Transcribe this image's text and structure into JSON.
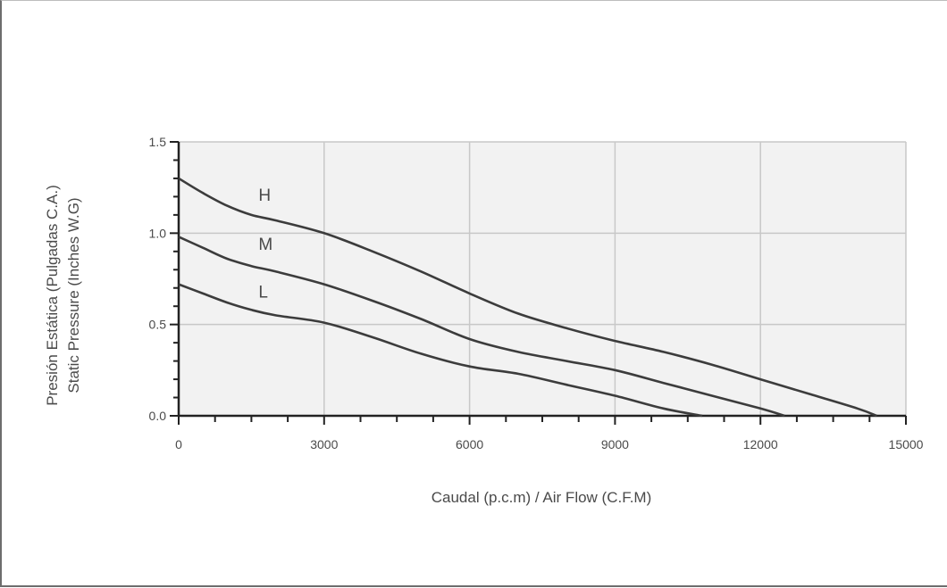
{
  "chart_data": {
    "type": "line",
    "title": "",
    "xlabel": "Caudal (p.c.m) / Air Flow (C.F.M)",
    "ylabel_lines": [
      "Presión Estática (Pulgadas C.A.)",
      "Static Pressure (Inches W.G)"
    ],
    "xlim": [
      0,
      15000
    ],
    "ylim": [
      0,
      1.5
    ],
    "x_ticks": [
      "0",
      "3000",
      "6000",
      "9000",
      "12000",
      "15000"
    ],
    "y_ticks": [
      "0.0",
      "0.5",
      "1.0",
      "1.5"
    ],
    "grid": true,
    "colors": {
      "plot_background": "#f2f2f2",
      "grid": "#c8c8c8",
      "curve": "#3c3c3c",
      "text": "#4a4a4a"
    },
    "series": [
      {
        "name": "H",
        "x": [
          0,
          500,
          1000,
          1500,
          2000,
          3000,
          4000,
          5000,
          6000,
          7000,
          8000,
          9000,
          10000,
          11000,
          12000,
          13000,
          14000,
          14400
        ],
        "y": [
          1.3,
          1.22,
          1.15,
          1.1,
          1.07,
          1.0,
          0.9,
          0.79,
          0.67,
          0.56,
          0.48,
          0.41,
          0.35,
          0.28,
          0.2,
          0.12,
          0.04,
          0.0
        ]
      },
      {
        "name": "M",
        "x": [
          0,
          500,
          1000,
          1500,
          2000,
          3000,
          4000,
          5000,
          6000,
          7000,
          8000,
          9000,
          10000,
          11000,
          12000,
          12500
        ],
        "y": [
          0.98,
          0.92,
          0.86,
          0.82,
          0.79,
          0.72,
          0.63,
          0.53,
          0.42,
          0.35,
          0.3,
          0.25,
          0.18,
          0.11,
          0.04,
          0.0
        ]
      },
      {
        "name": "L",
        "x": [
          0,
          500,
          1000,
          1500,
          2000,
          3000,
          4000,
          5000,
          6000,
          7000,
          8000,
          9000,
          10000,
          10800
        ],
        "y": [
          0.72,
          0.67,
          0.62,
          0.58,
          0.55,
          0.51,
          0.43,
          0.34,
          0.27,
          0.23,
          0.17,
          0.11,
          0.04,
          0.0
        ]
      }
    ]
  }
}
